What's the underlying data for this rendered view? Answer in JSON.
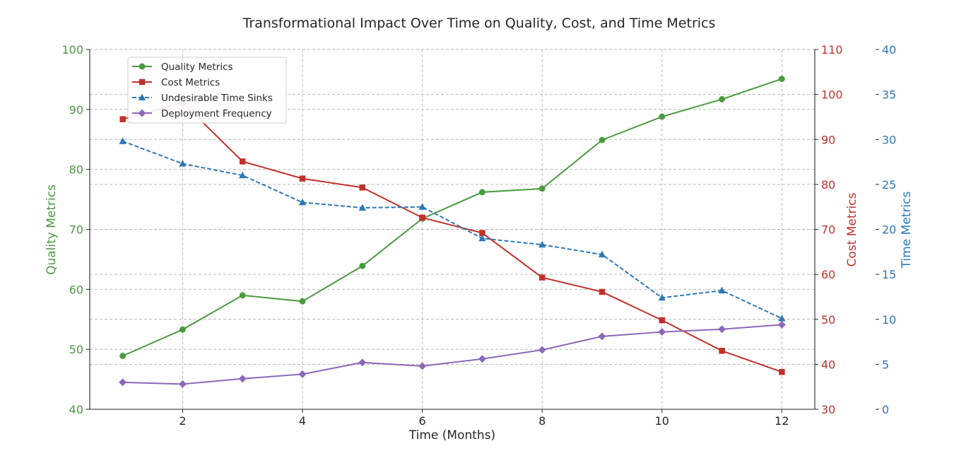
{
  "chart_data": {
    "type": "line",
    "title": "Transformational Impact Over Time on Quality, Cost, and Time Metrics",
    "xlabel": "Time (Months)",
    "x": [
      1,
      2,
      3,
      4,
      5,
      6,
      7,
      8,
      9,
      10,
      11,
      12
    ],
    "xlim": [
      0.45,
      12.55
    ],
    "xticks": [
      2,
      4,
      6,
      8,
      10,
      12
    ],
    "grid": true,
    "legend_position": "upper-left",
    "axes": {
      "left": {
        "label": "Quality Metrics",
        "ylim": [
          40,
          100
        ],
        "ticks": [
          40,
          50,
          60,
          70,
          80,
          90,
          100
        ],
        "color": "#4a9a3f"
      },
      "right1": {
        "label": "Cost Metrics",
        "ylim": [
          30,
          110
        ],
        "ticks": [
          30,
          40,
          50,
          60,
          70,
          80,
          90,
          100,
          110
        ],
        "color": "#c0312b"
      },
      "right2": {
        "label": "Time Metrics",
        "ylim": [
          0,
          40
        ],
        "ticks": [
          0,
          5,
          10,
          15,
          20,
          25,
          30,
          35,
          40
        ],
        "color": "#2e78b7"
      }
    },
    "series": [
      {
        "name": "Quality Metrics",
        "axis": "left",
        "color": "#4a9a3f",
        "marker": "circle",
        "dashed": false,
        "values": [
          48.9,
          53.3,
          59.0,
          58.0,
          63.9,
          71.8,
          76.2,
          76.8,
          84.9,
          88.8,
          91.7,
          95.1
        ]
      },
      {
        "name": "Cost Metrics",
        "axis": "right1",
        "color": "#c0312b",
        "marker": "square",
        "dashed": false,
        "values": [
          94.5,
          98.2,
          85.1,
          81.3,
          79.3,
          72.6,
          69.2,
          59.3,
          56.1,
          49.8,
          43.0,
          38.3
        ]
      },
      {
        "name": "Undesirable Time Sinks",
        "axis": "right2",
        "color": "#2e78b7",
        "marker": "triangle",
        "dashed": true,
        "values": [
          29.8,
          27.3,
          26.0,
          23.0,
          22.4,
          22.5,
          19.0,
          18.3,
          17.2,
          12.4,
          13.2,
          10.1
        ]
      },
      {
        "name": "Deployment Frequency",
        "axis": "right2",
        "color": "#8c68b9",
        "marker": "diamond",
        "dashed": false,
        "values": [
          3.0,
          2.8,
          3.4,
          3.9,
          5.2,
          4.8,
          5.6,
          6.6,
          8.1,
          8.6,
          8.9,
          9.4
        ]
      }
    ]
  }
}
